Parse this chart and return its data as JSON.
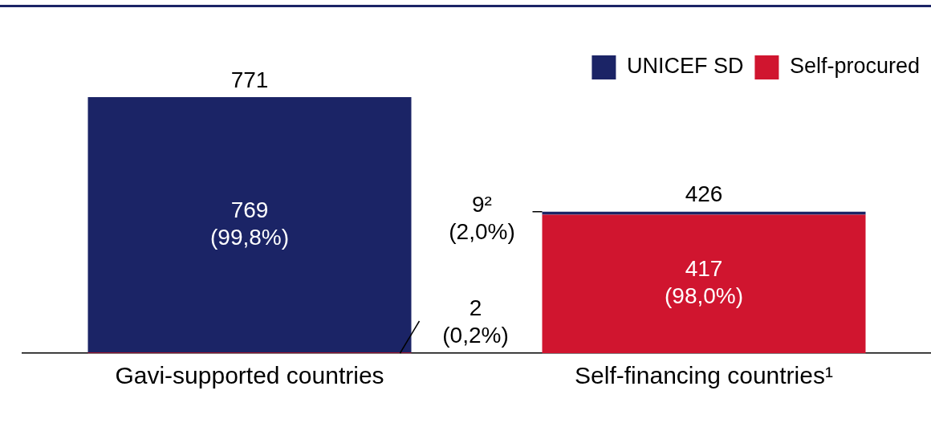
{
  "chart_data": {
    "type": "bar",
    "stacked": true,
    "categories": [
      "Gavi-supported countries",
      "Self-financing countries¹"
    ],
    "series": [
      {
        "name": "Self-procured",
        "color": "#d0152f",
        "values": [
          2,
          417
        ],
        "value_labels": [
          "2\n(0,2%)",
          "417\n(98,0%)"
        ]
      },
      {
        "name": "UNICEF SD",
        "color": "#1b2466",
        "values": [
          769,
          9
        ],
        "value_labels": [
          "769\n(99,8%)",
          "9²\n(2,0%)"
        ]
      }
    ],
    "totals": [
      "771",
      "426"
    ],
    "tick_labels": "x",
    "grid": false,
    "legend": "top right"
  }
}
